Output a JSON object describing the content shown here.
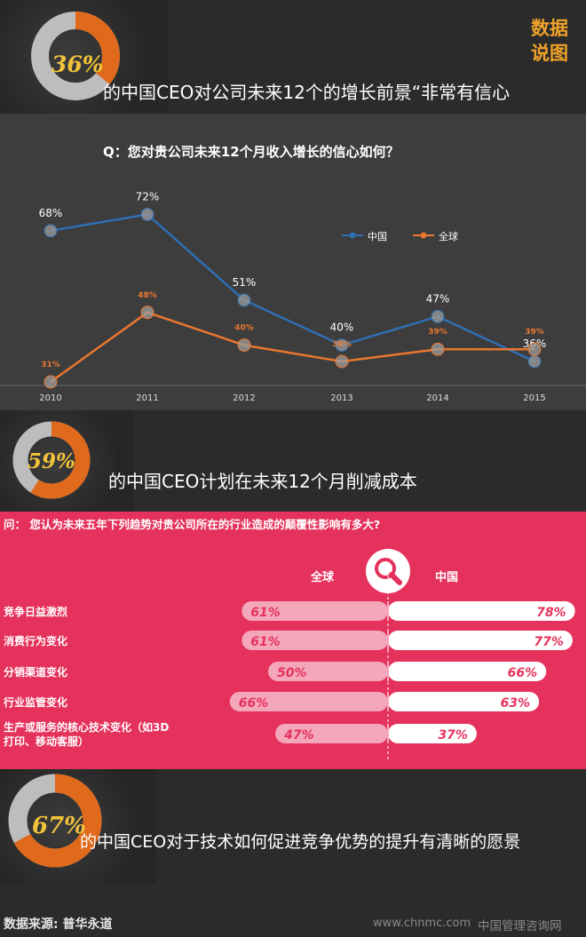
{
  "logo": {
    "line1": "数据",
    "line2": "说图"
  },
  "stats": [
    {
      "value": "36%",
      "text": "的中国CEO对公司未来12个的增长前景“非常有信心",
      "fraction": 0.36
    },
    {
      "value": "59%",
      "text": "的中国CEO计划在未来12个月削减成本",
      "fraction": 0.59
    },
    {
      "value": "67%",
      "text": "的中国CEO对于技术如何促进竞争优势的提升有清晰的愿景",
      "fraction": 0.67
    }
  ],
  "colors": {
    "orange": "#e06a1b",
    "gray_ring": "#bdbdbd",
    "blue": "#2f6fb3",
    "line_orange": "#e8772e",
    "pink": "#e5325c",
    "logo": "#f0a22a"
  },
  "chart_data": [
    {
      "type": "line",
      "title": "Q：您对贵公司未来12个月收入增长的信心如何？",
      "x": [
        "2010",
        "2011",
        "2012",
        "2013",
        "2014",
        "2015"
      ],
      "series": [
        {
          "name": "中国",
          "values": [
            68,
            72,
            51,
            40,
            47,
            36
          ],
          "labels": [
            "68%",
            "72%",
            "51%",
            "40%",
            "47%",
            "36%"
          ]
        },
        {
          "name": "全球",
          "values": [
            31,
            48,
            40,
            36,
            39,
            39
          ],
          "labels": [
            "31%",
            "48%",
            "40%",
            "36%",
            "39%",
            "39%"
          ]
        }
      ],
      "legend": "top-right",
      "grid": false
    },
    {
      "type": "bar",
      "title": "问：  您认为未来五年下列趋势对贵公司所在的行业造成的颠覆性影响有多大?",
      "legend": [
        "全球",
        "中国"
      ],
      "categories": [
        "竞争日益激烈",
        "消费行为变化",
        "分销渠道变化",
        "行业监管变化",
        "生产或服务的核心技术变化（如3D打印、移动客服）"
      ],
      "category_lines": [
        [
          "竞争日益激烈"
        ],
        [
          "消费行为变化"
        ],
        [
          "分销渠道变化"
        ],
        [
          "行业监管变化"
        ],
        [
          "生产或服务的核心技术变化（如3D",
          "打印、移动客服）"
        ]
      ],
      "series": [
        {
          "name": "全球",
          "values": [
            61,
            61,
            50,
            66,
            47
          ],
          "labels": [
            "61%",
            "61%",
            "50%",
            "66%",
            "47%"
          ]
        },
        {
          "name": "中国",
          "values": [
            78,
            77,
            66,
            63,
            37
          ],
          "labels": [
            "78%",
            "77%",
            "66%",
            "63%",
            "37%"
          ]
        }
      ]
    }
  ],
  "footer": {
    "source": "数据来源:  普华永道",
    "site": "www.chnmc.com",
    "brand": "中国管理咨询网"
  }
}
